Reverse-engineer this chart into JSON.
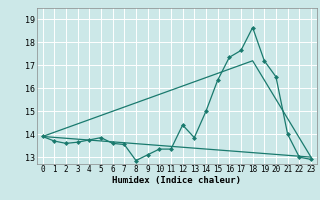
{
  "title": "",
  "xlabel": "Humidex (Indice chaleur)",
  "background_color": "#cce8e8",
  "grid_color": "#ffffff",
  "line_color": "#1a7a6e",
  "xlim": [
    -0.5,
    23.5
  ],
  "ylim": [
    12.7,
    19.5
  ],
  "yticks": [
    13,
    14,
    15,
    16,
    17,
    18,
    19
  ],
  "xticks": [
    0,
    1,
    2,
    3,
    4,
    5,
    6,
    7,
    8,
    9,
    10,
    11,
    12,
    13,
    14,
    15,
    16,
    17,
    18,
    19,
    20,
    21,
    22,
    23
  ],
  "line1_x": [
    0,
    1,
    2,
    3,
    4,
    5,
    6,
    7,
    8,
    9,
    10,
    11,
    12,
    13,
    14,
    15,
    16,
    17,
    18,
    19,
    20,
    21,
    22,
    23
  ],
  "line1_y": [
    13.9,
    13.7,
    13.6,
    13.65,
    13.75,
    13.85,
    13.6,
    13.55,
    12.85,
    13.1,
    13.35,
    13.35,
    14.4,
    13.85,
    15.0,
    16.35,
    17.35,
    17.65,
    18.65,
    17.2,
    16.5,
    14.0,
    13.0,
    12.9
  ],
  "line2_x": [
    0,
    23
  ],
  "line2_y": [
    13.9,
    13.0
  ],
  "line3_x": [
    0,
    18,
    23
  ],
  "line3_y": [
    13.9,
    17.2,
    13.0
  ],
  "marker_style": "D",
  "marker_size": 2.0,
  "line_width": 0.9,
  "tick_fontsize": 5.5,
  "xlabel_fontsize": 6.5,
  "font_family": "monospace"
}
